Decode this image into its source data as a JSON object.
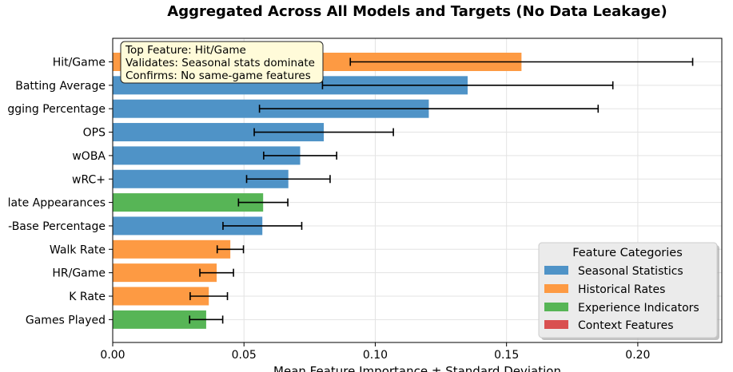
{
  "chart_data": {
    "type": "bar",
    "orientation": "horizontal",
    "title_line2": "Aggregated Across All Models and Targets (No Data Leakage)",
    "xlabel": "Mean Feature Importance ± Standard Deviation",
    "xlim": [
      0,
      0.232
    ],
    "xticks": [
      "0.00",
      "0.05",
      "0.10",
      "0.15",
      "0.20"
    ],
    "grid": true,
    "categories": [
      "Hit/Game",
      "Batting Average",
      "Slugging Percentage",
      "OPS",
      "wOBA",
      "wRC+",
      "Plate Appearances",
      "On-Base Percentage",
      "Walk Rate",
      "HR/Game",
      "K Rate",
      "Games Played"
    ],
    "category_labels_visible": [
      "Hit/Game",
      "Batting Average",
      "gging Percentage",
      "OPS",
      "wOBA",
      "wRC+",
      "late Appearances",
      "-Base Percentage",
      "Walk Rate",
      "HR/Game",
      "K Rate",
      "Games Played"
    ],
    "values": [
      0.1557,
      0.1352,
      0.1204,
      0.0804,
      0.0714,
      0.0669,
      0.0573,
      0.057,
      0.0448,
      0.0396,
      0.0366,
      0.0356
    ],
    "errors": [
      0.0652,
      0.0553,
      0.0645,
      0.0265,
      0.0139,
      0.0159,
      0.0094,
      0.015,
      0.005,
      0.0064,
      0.0071,
      0.0063
    ],
    "category_group": [
      "historical",
      "seasonal",
      "seasonal",
      "seasonal",
      "seasonal",
      "seasonal",
      "experience",
      "seasonal",
      "historical",
      "historical",
      "historical",
      "experience"
    ],
    "group_colors": {
      "seasonal": "#4f93c7",
      "historical": "#fd9a43",
      "experience": "#57b556",
      "context": "#d94f4f"
    },
    "legend": {
      "title": "Feature Categories",
      "placement": "lower-right",
      "items": [
        {
          "label": "Seasonal Statistics",
          "group": "seasonal"
        },
        {
          "label": "Historical Rates",
          "group": "historical"
        },
        {
          "label": "Experience Indicators",
          "group": "experience"
        },
        {
          "label": "Context Features",
          "group": "context"
        }
      ]
    },
    "annotation": {
      "lines": [
        "Top Feature: Hit/Game",
        "Validates: Seasonal stats dominate",
        "Confirms: No same-game features"
      ],
      "placement": "top-left",
      "background": "#fffbd9"
    }
  }
}
